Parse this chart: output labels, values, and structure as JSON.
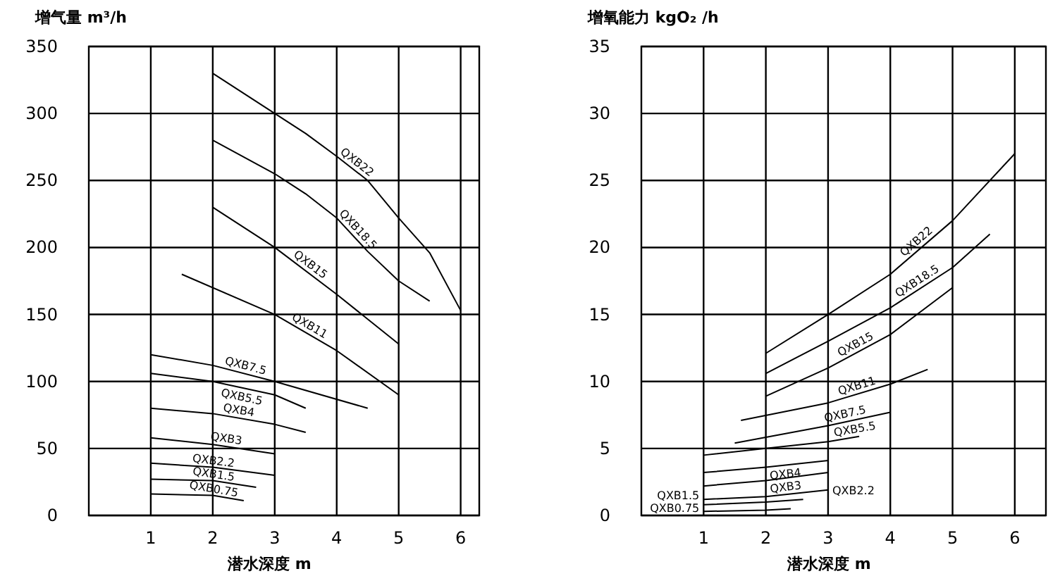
{
  "chart_data": [
    {
      "type": "line",
      "ylabel": "增气量 m³/h",
      "xlabel": "潜水深度 m",
      "xlim": [
        0,
        6.3
      ],
      "ylim": [
        0,
        350
      ],
      "xticks": [
        1,
        2,
        3,
        4,
        5,
        6
      ],
      "yticks": [
        0,
        50,
        100,
        150,
        200,
        250,
        300,
        350
      ],
      "grid": true,
      "legend": false,
      "marker": "none",
      "line_style": "solid",
      "series": [
        {
          "name": "QXB22",
          "color": "#000000",
          "x": [
            2,
            3,
            3.5,
            4,
            4.5,
            5,
            5.5,
            6
          ],
          "values": [
            330,
            300,
            285,
            268,
            250,
            222,
            196,
            153
          ]
        },
        {
          "name": "QXB18.5",
          "color": "#000000",
          "x": [
            2,
            3,
            3.5,
            4,
            4.5,
            5,
            5.5
          ],
          "values": [
            280,
            255,
            240,
            222,
            197,
            175,
            160
          ]
        },
        {
          "name": "QXB15",
          "color": "#000000",
          "x": [
            2,
            3,
            4,
            5
          ],
          "values": [
            230,
            200,
            165,
            128
          ]
        },
        {
          "name": "QXB11",
          "color": "#000000",
          "x": [
            1.5,
            3,
            4,
            5
          ],
          "values": [
            180,
            150,
            123,
            90
          ]
        },
        {
          "name": "QXB7.5",
          "color": "#000000",
          "x": [
            1,
            2,
            3,
            4.5
          ],
          "values": [
            120,
            112,
            100,
            80
          ]
        },
        {
          "name": "QXB5.5",
          "color": "#000000",
          "x": [
            1,
            2,
            3,
            3.5
          ],
          "values": [
            106,
            100,
            90,
            80
          ]
        },
        {
          "name": "QXB4",
          "color": "#000000",
          "x": [
            1,
            2,
            3,
            3.5
          ],
          "values": [
            80,
            76,
            68,
            62
          ]
        },
        {
          "name": "QXB3",
          "color": "#000000",
          "x": [
            1,
            2,
            3
          ],
          "values": [
            58,
            53,
            46
          ]
        },
        {
          "name": "QXB2.2",
          "color": "#000000",
          "x": [
            1,
            2,
            3
          ],
          "values": [
            39,
            36,
            30
          ]
        },
        {
          "name": "QXB1.5",
          "color": "#000000",
          "x": [
            1,
            2,
            2.7
          ],
          "values": [
            27,
            26,
            21
          ]
        },
        {
          "name": "QXB0.75",
          "color": "#000000",
          "x": [
            1,
            2,
            2.5
          ],
          "values": [
            16,
            15,
            11
          ]
        }
      ]
    },
    {
      "type": "line",
      "ylabel": "增氧能力 kgO₂ /h",
      "xlabel": "潜水深度 m",
      "xlim": [
        0,
        6.5
      ],
      "ylim": [
        0,
        35
      ],
      "xticks": [
        1,
        2,
        3,
        4,
        5,
        6
      ],
      "yticks": [
        0,
        5,
        10,
        15,
        20,
        25,
        30,
        35
      ],
      "grid": true,
      "legend": false,
      "marker": "none",
      "line_style": "solid",
      "series": [
        {
          "name": "QXB22",
          "color": "#000000",
          "x": [
            2,
            3,
            4,
            5,
            6
          ],
          "values": [
            12.1,
            15,
            18,
            22,
            27
          ]
        },
        {
          "name": "QXB18.5",
          "color": "#000000",
          "x": [
            2,
            3,
            4,
            5,
            5.6
          ],
          "values": [
            10.6,
            13,
            15.5,
            18.5,
            21
          ]
        },
        {
          "name": "QXB15",
          "color": "#000000",
          "x": [
            2,
            3,
            4,
            5
          ],
          "values": [
            8.9,
            11,
            13.5,
            17
          ]
        },
        {
          "name": "QXB11",
          "color": "#000000",
          "x": [
            1.6,
            3,
            4,
            4.6
          ],
          "values": [
            7.1,
            8.4,
            9.8,
            10.9
          ]
        },
        {
          "name": "QXB7.5",
          "color": "#000000",
          "x": [
            1.5,
            3,
            4
          ],
          "values": [
            5.4,
            6.7,
            7.7
          ]
        },
        {
          "name": "QXB5.5",
          "color": "#000000",
          "x": [
            1,
            2,
            3,
            3.5
          ],
          "values": [
            4.5,
            5,
            5.5,
            5.9
          ]
        },
        {
          "name": "QXB4",
          "color": "#000000",
          "x": [
            1,
            2,
            3
          ],
          "values": [
            3.2,
            3.6,
            4.1
          ]
        },
        {
          "name": "QXB3",
          "color": "#000000",
          "x": [
            1,
            2,
            3
          ],
          "values": [
            2.2,
            2.6,
            3.2
          ]
        },
        {
          "name": "QXB2.2",
          "color": "#000000",
          "x": [
            1,
            2,
            3
          ],
          "values": [
            1.2,
            1.4,
            1.9
          ]
        },
        {
          "name": "QXB1.5",
          "color": "#000000",
          "x": [
            1,
            2,
            2.6
          ],
          "values": [
            0.8,
            1,
            1.2
          ]
        },
        {
          "name": "QXB0.75",
          "color": "#000000",
          "x": [
            1,
            2,
            2.4
          ],
          "values": [
            0.3,
            0.4,
            0.5
          ]
        }
      ]
    }
  ]
}
